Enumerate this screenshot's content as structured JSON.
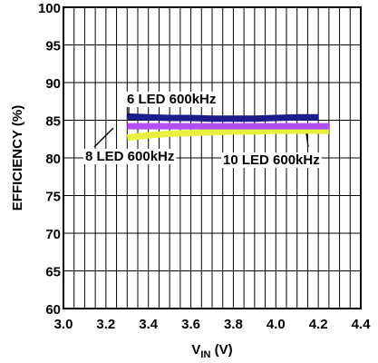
{
  "chart_data": {
    "type": "line",
    "title": "",
    "xlabel": "V",
    "xlabel_sub": "IN",
    "xlabel_suffix": " (V)",
    "ylabel": "EFFICIENCY (%)",
    "xlim": [
      3.0,
      4.4
    ],
    "ylim": [
      60,
      100
    ],
    "grid": true,
    "x_ticks": [
      "3.0",
      "3.2",
      "3.4",
      "3.6",
      "3.8",
      "4.0",
      "4.2",
      "4.4"
    ],
    "y_ticks": [
      "60",
      "65",
      "70",
      "75",
      "80",
      "85",
      "90",
      "95",
      "100"
    ],
    "series": [
      {
        "name": "6 LED 600kHz",
        "color": "#1c1c8c",
        "x": [
          3.3,
          3.4,
          3.5,
          3.6,
          3.7,
          3.8,
          3.9,
          4.0,
          4.1,
          4.2
        ],
        "y": [
          85.5,
          85.4,
          85.3,
          85.3,
          85.2,
          85.2,
          85.2,
          85.3,
          85.4,
          85.4
        ]
      },
      {
        "name": "8 LED 600kHz",
        "color": "#b050f0",
        "x": [
          3.3,
          3.4,
          3.5,
          3.6,
          3.7,
          3.8,
          3.9,
          4.0,
          4.1,
          4.25
        ],
        "y": [
          84.2,
          84.2,
          84.2,
          84.2,
          84.2,
          84.2,
          84.2,
          84.2,
          84.2,
          84.2
        ]
      },
      {
        "name": "10 LED 600kHz",
        "color": "#e8f040",
        "x": [
          3.3,
          3.4,
          3.5,
          3.6,
          3.7,
          3.8,
          3.9,
          4.0,
          4.1,
          4.25
        ],
        "y": [
          82.7,
          83.0,
          83.2,
          83.3,
          83.4,
          83.5,
          83.5,
          83.6,
          83.6,
          83.6
        ]
      }
    ],
    "annotations": [
      {
        "text": "6 LED 600kHz"
      },
      {
        "text": "8 LED 600kHz"
      },
      {
        "text": "10 LED 600kHz"
      }
    ]
  }
}
